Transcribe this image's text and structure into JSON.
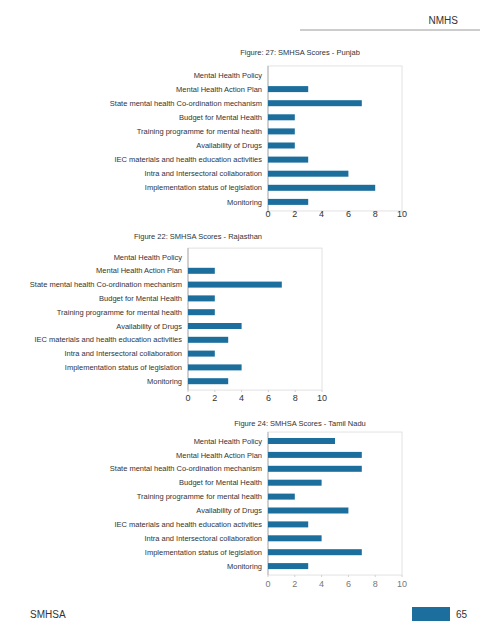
{
  "page": {
    "header": "NMHS",
    "footer": "SMHSA",
    "page_number": "65"
  },
  "chart_data": [
    {
      "type": "bar",
      "orientation": "horizontal",
      "title": "Figure: 27: SMHSA Scores - Punjab",
      "categories": [
        "Mental Health Policy",
        "Mental Health Action Plan",
        "State mental health Co-ordination mechanism",
        "Budget for Mental Health",
        "Training programme for mental health",
        "Availability of Drugs",
        "IEC materials and health education activities",
        "Intra and Intersectoral collaboration",
        "Implementation status of legislation",
        "Monitoring"
      ],
      "values": [
        0,
        3,
        7,
        2,
        2,
        2,
        3,
        6,
        8,
        3
      ],
      "color": "#1c6e9c",
      "xlim": [
        0,
        10
      ],
      "xticks": [
        0,
        2,
        4,
        6,
        8,
        10
      ],
      "grid": false
    },
    {
      "type": "bar",
      "orientation": "horizontal",
      "title": "Figure 22: SMHSA Scores - Rajasthan",
      "categories": [
        "Mental Health Policy",
        "Mental Health Action Plan",
        "State mental health Co-ordination mechanism",
        "Budget for Mental Health",
        "Training programme for mental health",
        "Availability of Drugs",
        "IEC materials and health education activities",
        "Intra and Intersectoral collaboration",
        "Implementation status of legislation",
        "Monitoring"
      ],
      "values": [
        0,
        2,
        7,
        2,
        2,
        4,
        3,
        2,
        4,
        3
      ],
      "color": "#1c6e9c",
      "xlim": [
        0,
        10
      ],
      "xticks": [
        0,
        2,
        4,
        6,
        8,
        10
      ],
      "grid": false
    },
    {
      "type": "bar",
      "orientation": "horizontal",
      "title": "Figure 24: SMHSA Scores - Tamil Nadu",
      "categories": [
        "Mental Health Policy",
        "Mental Health Action Plan",
        "State mental health Co-ordination mechanism",
        "Budget for Mental Health",
        "Training programme for mental health",
        "Availability of Drugs",
        "IEC materials and health education activities",
        "Intra and Intersectoral collaboration",
        "Implementation status of legislation",
        "Monitoring"
      ],
      "values": [
        5,
        7,
        7,
        4,
        2,
        6,
        3,
        4,
        7,
        3
      ],
      "color": "#1c6e9c",
      "xlim": [
        0,
        10
      ],
      "xticks": [
        0,
        2,
        4,
        6,
        8,
        10
      ],
      "grid": false
    }
  ]
}
